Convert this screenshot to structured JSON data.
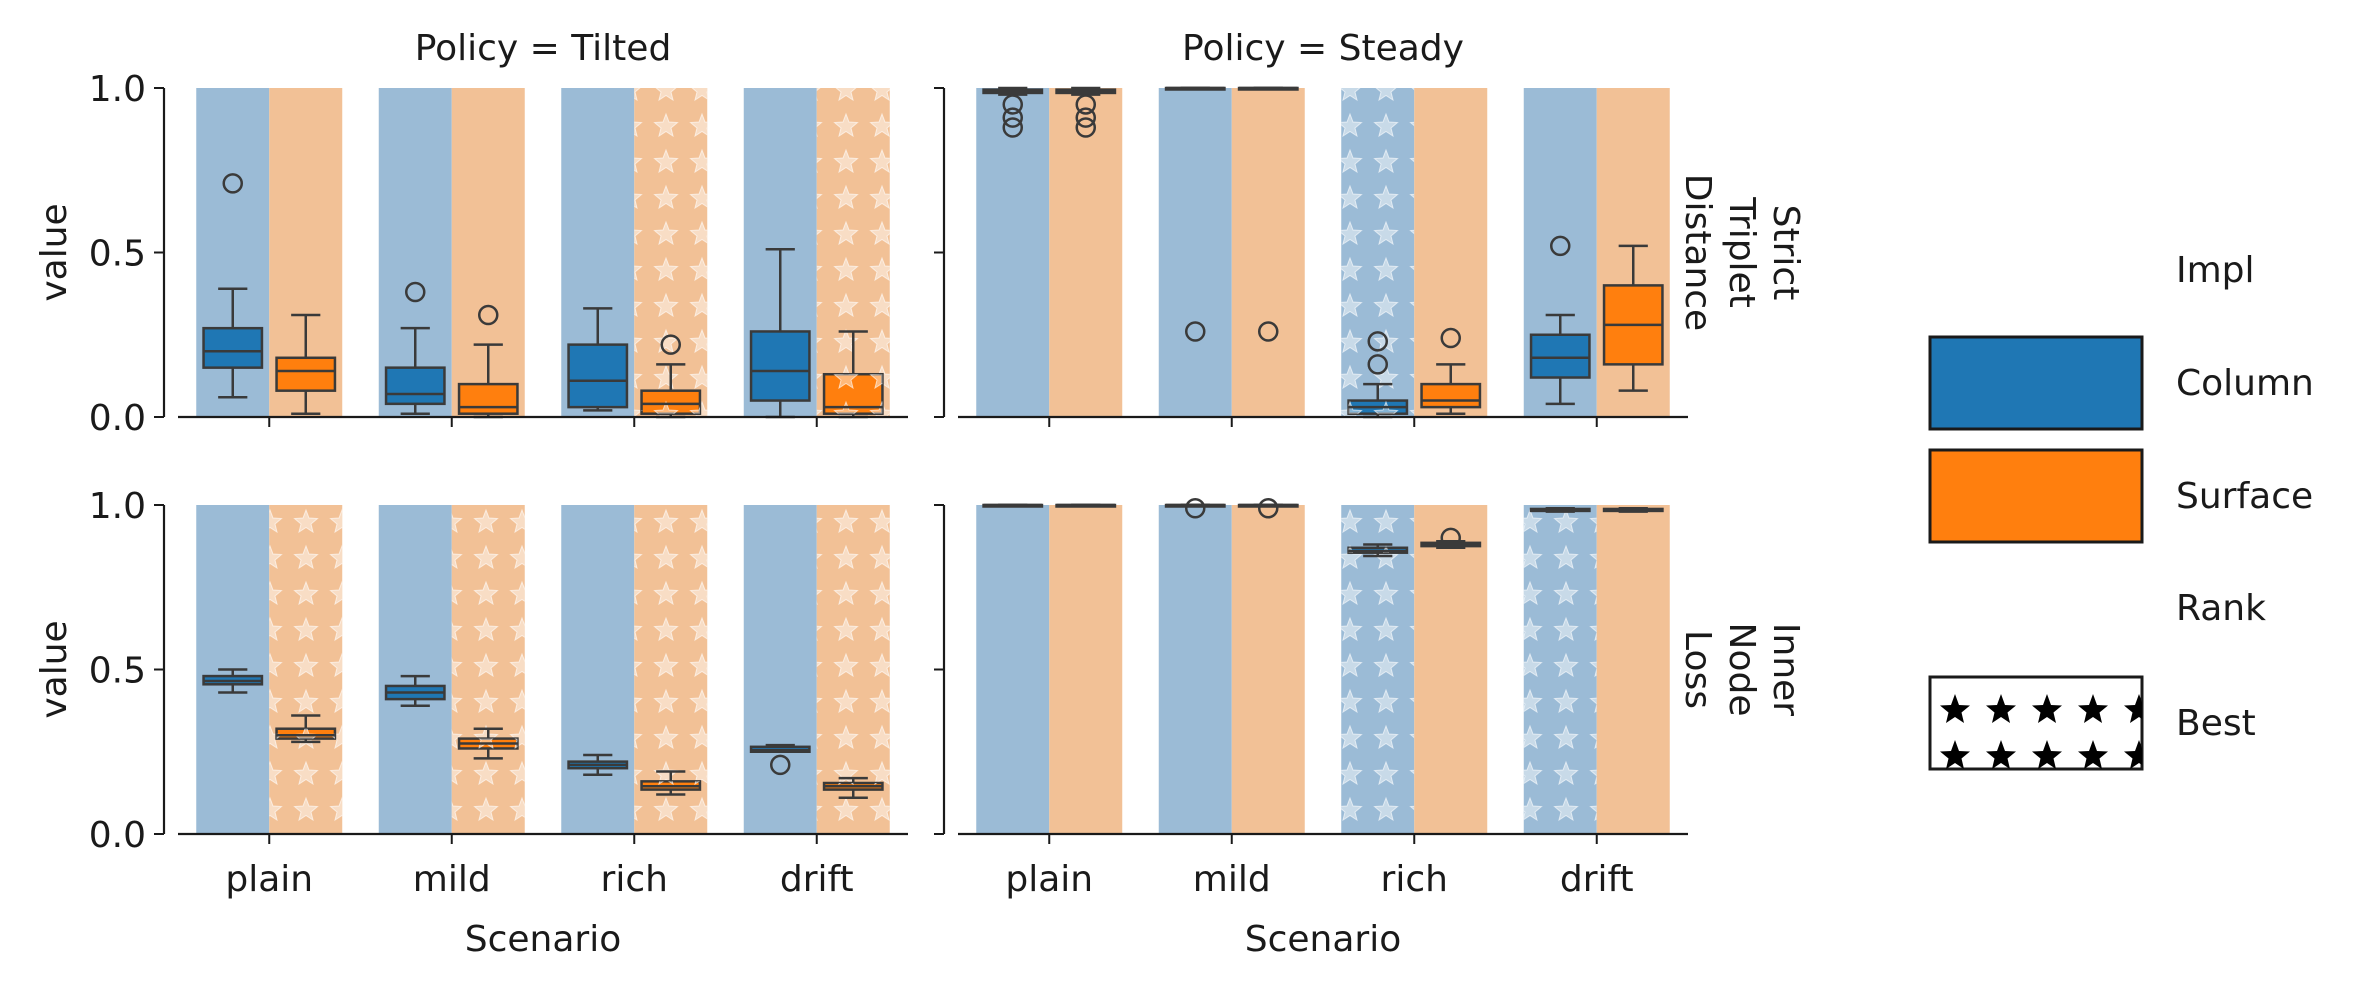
{
  "chart_data": {
    "type": "bar",
    "description_free": true,
    "categories": [
      "plain",
      "mild",
      "rich",
      "drift"
    ],
    "xlabel": "Scenario",
    "ylabel": "value",
    "ylim": [
      0,
      1
    ],
    "yticks": [
      "0.0",
      "0.5",
      "1.0"
    ],
    "col_titles": [
      "Policy = Tilted",
      "Policy = Steady"
    ],
    "row_titles": [
      "Strict\nTriplet\nDistance",
      "Inner\nNode\nLoss"
    ],
    "legend": {
      "position": "right",
      "impl_title": "Impl",
      "impl_entries": [
        {
          "label": "Column",
          "color": "#1f77b4"
        },
        {
          "label": "Surface",
          "color": "#ff7f0e"
        }
      ],
      "rank_title": "Rank",
      "rank_entries": [
        {
          "label": "Best",
          "hatch": "stars"
        }
      ]
    },
    "series": [
      {
        "name": "Column",
        "color": "#1f77b4",
        "bg_color": "#9bbbd6"
      },
      {
        "name": "Surface",
        "color": "#ff7f0e",
        "bg_color": "#f2c196"
      }
    ],
    "panels": [
      {
        "row": 0,
        "col": 0,
        "best": [
          [
            false,
            false
          ],
          [
            false,
            false
          ],
          [
            false,
            true
          ],
          [
            false,
            true
          ]
        ],
        "boxes": [
          [
            {
              "whislo": 0.06,
              "q1": 0.15,
              "med": 0.2,
              "q3": 0.27,
              "whishi": 0.39,
              "fliers": [
                0.71
              ]
            },
            {
              "whislo": 0.01,
              "q1": 0.08,
              "med": 0.14,
              "q3": 0.18,
              "whishi": 0.31,
              "fliers": []
            }
          ],
          [
            {
              "whislo": 0.01,
              "q1": 0.04,
              "med": 0.07,
              "q3": 0.15,
              "whishi": 0.27,
              "fliers": [
                0.38
              ]
            },
            {
              "whislo": 0.0,
              "q1": 0.01,
              "med": 0.03,
              "q3": 0.1,
              "whishi": 0.22,
              "fliers": [
                0.31
              ]
            }
          ],
          [
            {
              "whislo": 0.02,
              "q1": 0.03,
              "med": 0.11,
              "q3": 0.22,
              "whishi": 0.33,
              "fliers": []
            },
            {
              "whislo": 0.0,
              "q1": 0.01,
              "med": 0.04,
              "q3": 0.08,
              "whishi": 0.16,
              "fliers": [
                0.22
              ]
            }
          ],
          [
            {
              "whislo": 0.0,
              "q1": 0.05,
              "med": 0.14,
              "q3": 0.26,
              "whishi": 0.51,
              "fliers": []
            },
            {
              "whislo": 0.0,
              "q1": 0.01,
              "med": 0.03,
              "q3": 0.13,
              "whishi": 0.26,
              "fliers": []
            }
          ]
        ]
      },
      {
        "row": 0,
        "col": 1,
        "best": [
          [
            false,
            false
          ],
          [
            false,
            false
          ],
          [
            true,
            false
          ],
          [
            false,
            false
          ]
        ],
        "boxes": [
          [
            {
              "whislo": 0.98,
              "q1": 0.985,
              "med": 0.99,
              "q3": 0.995,
              "whishi": 1.0,
              "fliers": [
                0.88,
                0.91,
                0.95
              ]
            },
            {
              "whislo": 0.98,
              "q1": 0.985,
              "med": 0.99,
              "q3": 0.995,
              "whishi": 1.0,
              "fliers": [
                0.88,
                0.91,
                0.95
              ]
            }
          ],
          [
            {
              "whislo": 1.0,
              "q1": 1.0,
              "med": 1.0,
              "q3": 1.0,
              "whishi": 1.0,
              "fliers": [
                0.26
              ]
            },
            {
              "whislo": 1.0,
              "q1": 1.0,
              "med": 1.0,
              "q3": 1.0,
              "whishi": 1.0,
              "fliers": [
                0.26
              ]
            }
          ],
          [
            {
              "whislo": 0.0,
              "q1": 0.01,
              "med": 0.03,
              "q3": 0.05,
              "whishi": 0.1,
              "fliers": [
                0.16,
                0.23
              ]
            },
            {
              "whislo": 0.01,
              "q1": 0.03,
              "med": 0.05,
              "q3": 0.1,
              "whishi": 0.16,
              "fliers": [
                0.24
              ]
            }
          ],
          [
            {
              "whislo": 0.04,
              "q1": 0.12,
              "med": 0.18,
              "q3": 0.25,
              "whishi": 0.31,
              "fliers": [
                0.52
              ]
            },
            {
              "whislo": 0.08,
              "q1": 0.16,
              "med": 0.28,
              "q3": 0.4,
              "whishi": 0.52,
              "fliers": []
            }
          ]
        ]
      },
      {
        "row": 1,
        "col": 0,
        "best": [
          [
            false,
            true
          ],
          [
            false,
            true
          ],
          [
            false,
            true
          ],
          [
            false,
            true
          ]
        ],
        "boxes": [
          [
            {
              "whislo": 0.43,
              "q1": 0.455,
              "med": 0.465,
              "q3": 0.48,
              "whishi": 0.5,
              "fliers": []
            },
            {
              "whislo": 0.28,
              "q1": 0.29,
              "med": 0.3,
              "q3": 0.32,
              "whishi": 0.36,
              "fliers": []
            }
          ],
          [
            {
              "whislo": 0.39,
              "q1": 0.41,
              "med": 0.43,
              "q3": 0.45,
              "whishi": 0.48,
              "fliers": []
            },
            {
              "whislo": 0.23,
              "q1": 0.26,
              "med": 0.275,
              "q3": 0.29,
              "whishi": 0.32,
              "fliers": []
            }
          ],
          [
            {
              "whislo": 0.18,
              "q1": 0.2,
              "med": 0.21,
              "q3": 0.22,
              "whishi": 0.24,
              "fliers": []
            },
            {
              "whislo": 0.12,
              "q1": 0.135,
              "med": 0.145,
              "q3": 0.16,
              "whishi": 0.19,
              "fliers": []
            }
          ],
          [
            {
              "whislo": 0.25,
              "q1": 0.25,
              "med": 0.255,
              "q3": 0.265,
              "whishi": 0.27,
              "fliers": [
                0.21
              ]
            },
            {
              "whislo": 0.11,
              "q1": 0.135,
              "med": 0.145,
              "q3": 0.155,
              "whishi": 0.17,
              "fliers": []
            }
          ]
        ]
      },
      {
        "row": 1,
        "col": 1,
        "best": [
          [
            false,
            false
          ],
          [
            false,
            false
          ],
          [
            true,
            false
          ],
          [
            true,
            false
          ]
        ],
        "boxes": [
          [
            {
              "whislo": 1.0,
              "q1": 1.0,
              "med": 1.0,
              "q3": 1.0,
              "whishi": 1.0,
              "fliers": []
            },
            {
              "whislo": 1.0,
              "q1": 1.0,
              "med": 1.0,
              "q3": 1.0,
              "whishi": 1.0,
              "fliers": []
            }
          ],
          [
            {
              "whislo": 1.0,
              "q1": 1.0,
              "med": 1.0,
              "q3": 1.0,
              "whishi": 1.0,
              "fliers": [
                0.99
              ]
            },
            {
              "whislo": 1.0,
              "q1": 1.0,
              "med": 1.0,
              "q3": 1.0,
              "whishi": 1.0,
              "fliers": [
                0.99
              ]
            }
          ],
          [
            {
              "whislo": 0.845,
              "q1": 0.855,
              "med": 0.86,
              "q3": 0.87,
              "whishi": 0.88,
              "fliers": []
            },
            {
              "whislo": 0.87,
              "q1": 0.875,
              "med": 0.88,
              "q3": 0.885,
              "whishi": 0.89,
              "fliers": [
                0.9
              ]
            }
          ],
          [
            {
              "whislo": 0.98,
              "q1": 0.982,
              "med": 0.985,
              "q3": 0.988,
              "whishi": 0.99,
              "fliers": []
            },
            {
              "whislo": 0.98,
              "q1": 0.982,
              "med": 0.985,
              "q3": 0.988,
              "whishi": 0.99,
              "fliers": []
            }
          ]
        ]
      }
    ]
  }
}
